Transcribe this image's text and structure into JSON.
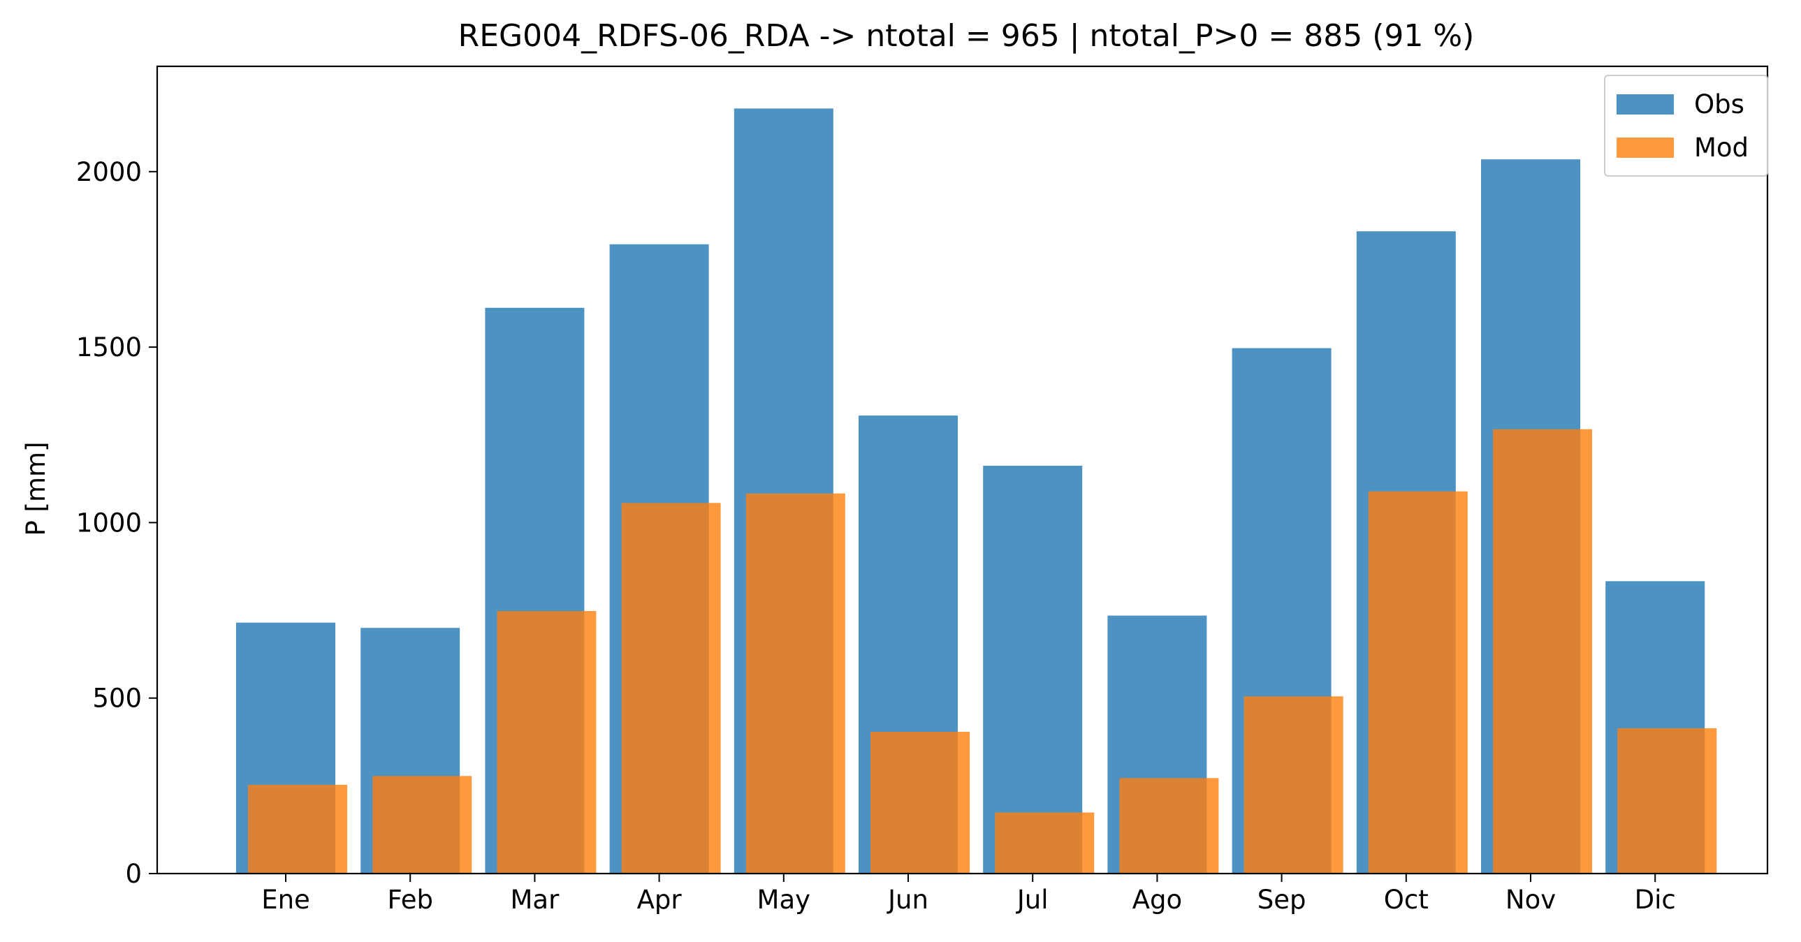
{
  "chart_data": {
    "type": "bar",
    "title": "REG004_RDFS-06_RDA -> ntotal = 965 | ntotal_P>0 = 885 (91 %)",
    "xlabel": "",
    "ylabel": "P [mm]",
    "ylim": [
      0,
      2300
    ],
    "yticks": [
      0,
      500,
      1000,
      1500,
      2000
    ],
    "ytick_labels": [
      "0",
      "500",
      "1000",
      "1500",
      "2000"
    ],
    "grid": false,
    "legend_position": "top-right",
    "categories": [
      "Ene",
      "Feb",
      "Mar",
      "Apr",
      "May",
      "Jun",
      "Jul",
      "Ago",
      "Sep",
      "Oct",
      "Nov",
      "Dic"
    ],
    "series": [
      {
        "name": "Obs",
        "color": "#1f77b4",
        "opacity": 0.8,
        "values": [
          715,
          700,
          1612,
          1793,
          2180,
          1305,
          1162,
          735,
          1497,
          1830,
          2035,
          833
        ]
      },
      {
        "name": "Mod",
        "color": "#ff7f0e",
        "opacity": 0.8,
        "values": [
          253,
          278,
          748,
          1056,
          1083,
          404,
          174,
          272,
          505,
          1089,
          1266,
          414
        ]
      }
    ]
  }
}
